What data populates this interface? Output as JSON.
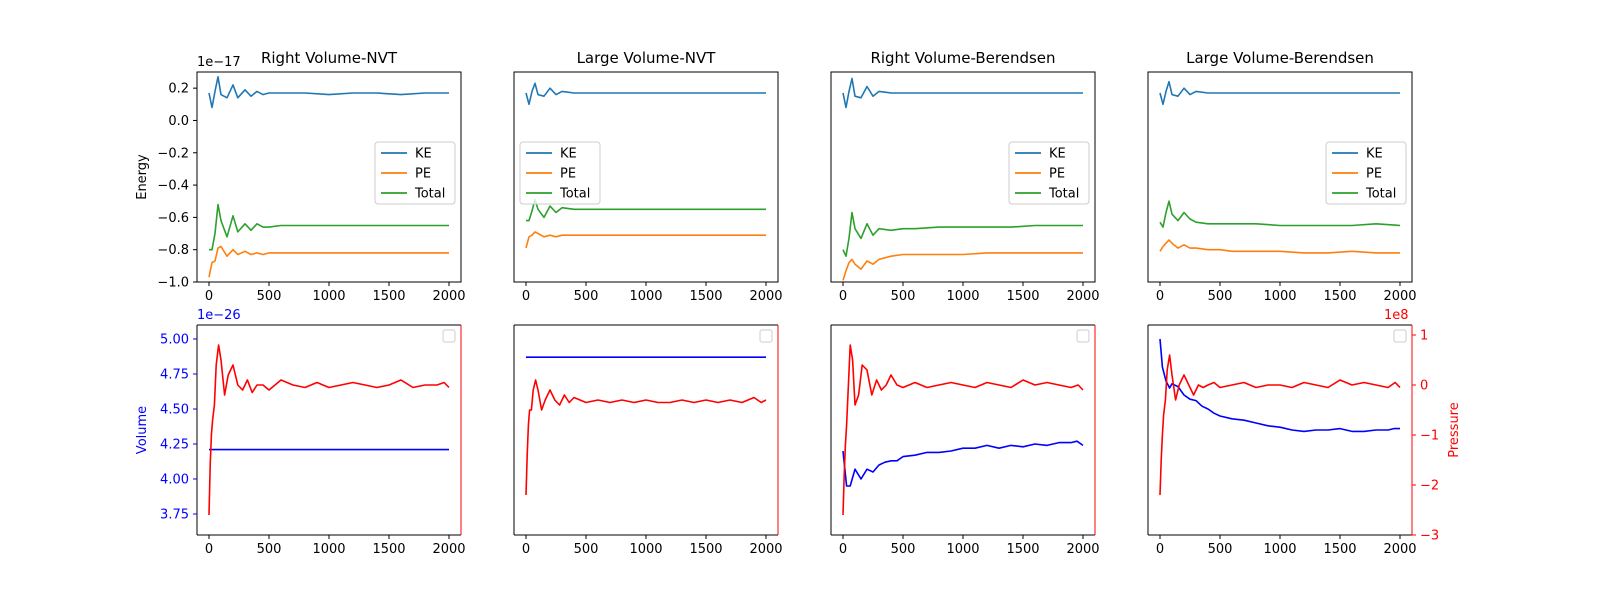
{
  "chart_data": [
    {
      "type": "line",
      "title": "Right Volume-NVT",
      "ylabel": "Energy",
      "y_offset_label": "1e−17",
      "xlim": [
        -100,
        2100
      ],
      "ylim": [
        -1.0,
        0.3
      ],
      "legend": "center-right",
      "series": [
        {
          "name": "KE",
          "color": "#1f77b4",
          "x": [
            0,
            25,
            50,
            75,
            100,
            150,
            200,
            240,
            300,
            350,
            400,
            450,
            500,
            600,
            800,
            1000,
            1200,
            1400,
            1600,
            1800,
            2000
          ],
          "y": [
            0.17,
            0.08,
            0.18,
            0.27,
            0.16,
            0.14,
            0.22,
            0.14,
            0.19,
            0.15,
            0.18,
            0.16,
            0.17,
            0.17,
            0.17,
            0.16,
            0.17,
            0.17,
            0.16,
            0.17,
            0.17
          ]
        },
        {
          "name": "PE",
          "color": "#ff7f0e",
          "x": [
            0,
            25,
            50,
            75,
            100,
            150,
            200,
            240,
            300,
            350,
            400,
            450,
            500,
            600,
            800,
            1000,
            1200,
            1400,
            1600,
            1800,
            2000
          ],
          "y": [
            -0.97,
            -0.88,
            -0.87,
            -0.79,
            -0.78,
            -0.84,
            -0.8,
            -0.83,
            -0.81,
            -0.83,
            -0.82,
            -0.83,
            -0.82,
            -0.82,
            -0.82,
            -0.82,
            -0.82,
            -0.82,
            -0.82,
            -0.82,
            -0.82
          ]
        },
        {
          "name": "Total",
          "color": "#2ca02c",
          "x": [
            0,
            25,
            50,
            75,
            100,
            150,
            200,
            240,
            300,
            350,
            400,
            450,
            500,
            600,
            800,
            1000,
            1200,
            1400,
            1600,
            1800,
            2000
          ],
          "y": [
            -0.8,
            -0.8,
            -0.7,
            -0.52,
            -0.62,
            -0.72,
            -0.59,
            -0.69,
            -0.64,
            -0.68,
            -0.64,
            -0.66,
            -0.66,
            -0.65,
            -0.65,
            -0.65,
            -0.65,
            -0.65,
            -0.65,
            -0.65,
            -0.65
          ]
        }
      ]
    },
    {
      "type": "line",
      "title": "Large Volume-NVT",
      "xlim": [
        -100,
        2100
      ],
      "ylim": [
        -1.0,
        0.3
      ],
      "legend": "center-left",
      "series": [
        {
          "name": "KE",
          "color": "#1f77b4",
          "x": [
            0,
            25,
            50,
            75,
            100,
            150,
            200,
            250,
            300,
            400,
            500,
            600,
            800,
            1000,
            1200,
            1400,
            1600,
            1800,
            2000
          ],
          "y": [
            0.17,
            0.1,
            0.18,
            0.23,
            0.16,
            0.15,
            0.2,
            0.16,
            0.18,
            0.17,
            0.17,
            0.17,
            0.17,
            0.17,
            0.17,
            0.17,
            0.17,
            0.17,
            0.17
          ]
        },
        {
          "name": "PE",
          "color": "#ff7f0e",
          "x": [
            0,
            25,
            50,
            75,
            100,
            150,
            200,
            250,
            300,
            400,
            500,
            600,
            800,
            1000,
            1200,
            1400,
            1600,
            1800,
            2000
          ],
          "y": [
            -0.79,
            -0.72,
            -0.71,
            -0.69,
            -0.7,
            -0.72,
            -0.71,
            -0.72,
            -0.71,
            -0.71,
            -0.71,
            -0.71,
            -0.71,
            -0.71,
            -0.71,
            -0.71,
            -0.71,
            -0.71,
            -0.71
          ]
        },
        {
          "name": "Total",
          "color": "#2ca02c",
          "x": [
            0,
            25,
            50,
            75,
            100,
            150,
            200,
            250,
            300,
            400,
            500,
            600,
            800,
            1000,
            1200,
            1400,
            1600,
            1800,
            2000
          ],
          "y": [
            -0.62,
            -0.62,
            -0.56,
            -0.49,
            -0.55,
            -0.6,
            -0.53,
            -0.57,
            -0.54,
            -0.55,
            -0.55,
            -0.55,
            -0.55,
            -0.55,
            -0.55,
            -0.55,
            -0.55,
            -0.55,
            -0.55
          ]
        }
      ]
    },
    {
      "type": "line",
      "title": "Right Volume-Berendsen",
      "xlim": [
        -100,
        2100
      ],
      "ylim": [
        -1.0,
        0.3
      ],
      "legend": "center-right",
      "series": [
        {
          "name": "KE",
          "color": "#1f77b4",
          "x": [
            0,
            25,
            50,
            75,
            100,
            150,
            200,
            250,
            300,
            400,
            500,
            600,
            800,
            1000,
            1200,
            1400,
            1600,
            1800,
            2000
          ],
          "y": [
            0.17,
            0.08,
            0.18,
            0.26,
            0.15,
            0.14,
            0.21,
            0.15,
            0.18,
            0.17,
            0.17,
            0.17,
            0.17,
            0.17,
            0.17,
            0.17,
            0.17,
            0.17,
            0.17
          ]
        },
        {
          "name": "PE",
          "color": "#ff7f0e",
          "x": [
            0,
            25,
            50,
            75,
            100,
            150,
            200,
            250,
            300,
            400,
            500,
            600,
            800,
            1000,
            1200,
            1400,
            1600,
            1800,
            2000
          ],
          "y": [
            -0.99,
            -0.93,
            -0.88,
            -0.86,
            -0.89,
            -0.92,
            -0.87,
            -0.89,
            -0.86,
            -0.84,
            -0.83,
            -0.83,
            -0.83,
            -0.83,
            -0.82,
            -0.82,
            -0.82,
            -0.82,
            -0.82
          ]
        },
        {
          "name": "Total",
          "color": "#2ca02c",
          "x": [
            0,
            25,
            50,
            75,
            100,
            150,
            200,
            250,
            300,
            400,
            500,
            600,
            800,
            1000,
            1200,
            1400,
            1600,
            1800,
            2000
          ],
          "y": [
            -0.8,
            -0.84,
            -0.73,
            -0.57,
            -0.67,
            -0.73,
            -0.64,
            -0.71,
            -0.67,
            -0.68,
            -0.67,
            -0.67,
            -0.66,
            -0.66,
            -0.66,
            -0.66,
            -0.65,
            -0.65,
            -0.65
          ]
        }
      ]
    },
    {
      "type": "line",
      "title": "Large Volume-Berendsen",
      "xlim": [
        -100,
        2100
      ],
      "ylim": [
        -1.0,
        0.3
      ],
      "legend": "center-right",
      "series": [
        {
          "name": "KE",
          "color": "#1f77b4",
          "x": [
            0,
            25,
            50,
            75,
            100,
            150,
            200,
            250,
            300,
            400,
            500,
            600,
            800,
            1000,
            1200,
            1400,
            1600,
            1800,
            2000
          ],
          "y": [
            0.17,
            0.1,
            0.18,
            0.24,
            0.16,
            0.15,
            0.2,
            0.16,
            0.18,
            0.17,
            0.17,
            0.17,
            0.17,
            0.17,
            0.17,
            0.17,
            0.17,
            0.17,
            0.17
          ]
        },
        {
          "name": "PE",
          "color": "#ff7f0e",
          "x": [
            0,
            25,
            50,
            75,
            100,
            150,
            200,
            250,
            300,
            400,
            500,
            600,
            800,
            1000,
            1200,
            1400,
            1600,
            1800,
            2000
          ],
          "y": [
            -0.81,
            -0.78,
            -0.76,
            -0.74,
            -0.76,
            -0.79,
            -0.77,
            -0.79,
            -0.79,
            -0.8,
            -0.8,
            -0.81,
            -0.81,
            -0.81,
            -0.82,
            -0.82,
            -0.81,
            -0.82,
            -0.82
          ]
        },
        {
          "name": "Total",
          "color": "#2ca02c",
          "x": [
            0,
            25,
            50,
            75,
            100,
            150,
            200,
            250,
            300,
            400,
            500,
            600,
            800,
            1000,
            1200,
            1400,
            1600,
            1800,
            2000
          ],
          "y": [
            -0.63,
            -0.66,
            -0.57,
            -0.5,
            -0.58,
            -0.62,
            -0.57,
            -0.61,
            -0.63,
            -0.64,
            -0.64,
            -0.64,
            -0.64,
            -0.65,
            -0.65,
            -0.65,
            -0.65,
            -0.64,
            -0.65
          ]
        }
      ]
    },
    {
      "type": "line",
      "ylabel": "Volume",
      "y_offset_label": "1e−26",
      "ylim": [
        3.6,
        5.1
      ],
      "y2lim": [
        -3,
        1.2
      ],
      "xlim": [
        -100,
        2100
      ],
      "legend": "top-right",
      "volume": {
        "color": "#0000ff",
        "x": [
          0,
          2000
        ],
        "y": [
          4.21,
          4.21
        ]
      },
      "pressure": {
        "color": "#ff0000",
        "x": [
          0,
          10,
          20,
          30,
          45,
          60,
          80,
          100,
          130,
          160,
          200,
          240,
          280,
          320,
          360,
          400,
          450,
          500,
          600,
          700,
          800,
          900,
          1000,
          1100,
          1200,
          1300,
          1400,
          1500,
          1600,
          1700,
          1800,
          1900,
          1960,
          2000
        ],
        "y": [
          -2.6,
          -1.6,
          -1.0,
          -0.7,
          -0.4,
          0.4,
          0.8,
          0.5,
          -0.2,
          0.2,
          0.4,
          0.0,
          -0.1,
          0.1,
          -0.15,
          0.0,
          0.0,
          -0.1,
          0.1,
          0.0,
          -0.05,
          0.05,
          -0.05,
          0.0,
          0.05,
          0.0,
          -0.05,
          0.0,
          0.1,
          -0.05,
          0.0,
          0.0,
          0.05,
          -0.05
        ]
      }
    },
    {
      "type": "line",
      "ylim": [
        3.6,
        5.1
      ],
      "y2lim": [
        -3,
        1.2
      ],
      "xlim": [
        -100,
        2100
      ],
      "legend": "top-right",
      "volume": {
        "color": "#0000ff",
        "x": [
          0,
          2000
        ],
        "y": [
          4.87,
          4.87
        ]
      },
      "pressure": {
        "color": "#ff0000",
        "x": [
          0,
          10,
          20,
          30,
          45,
          60,
          80,
          100,
          130,
          160,
          200,
          240,
          280,
          320,
          360,
          400,
          450,
          500,
          600,
          700,
          800,
          900,
          1000,
          1100,
          1200,
          1300,
          1400,
          1500,
          1600,
          1700,
          1800,
          1900,
          1960,
          2000
        ],
        "y": [
          -2.2,
          -1.4,
          -0.8,
          -0.5,
          -0.5,
          -0.1,
          0.1,
          -0.1,
          -0.5,
          -0.3,
          -0.1,
          -0.3,
          -0.4,
          -0.2,
          -0.35,
          -0.25,
          -0.3,
          -0.35,
          -0.3,
          -0.35,
          -0.3,
          -0.35,
          -0.3,
          -0.35,
          -0.35,
          -0.3,
          -0.35,
          -0.3,
          -0.35,
          -0.3,
          -0.35,
          -0.25,
          -0.35,
          -0.3
        ]
      }
    },
    {
      "type": "line",
      "ylim": [
        3.6,
        5.1
      ],
      "y2lim": [
        -3,
        1.2
      ],
      "xlim": [
        -100,
        2100
      ],
      "legend": "top-right",
      "volume": {
        "color": "#0000ff",
        "x": [
          0,
          30,
          60,
          100,
          150,
          200,
          250,
          300,
          350,
          400,
          450,
          500,
          600,
          700,
          800,
          900,
          1000,
          1100,
          1200,
          1300,
          1400,
          1500,
          1600,
          1700,
          1800,
          1900,
          1950,
          2000
        ],
        "y": [
          4.2,
          3.95,
          3.95,
          4.07,
          4.0,
          4.07,
          4.05,
          4.1,
          4.12,
          4.13,
          4.13,
          4.16,
          4.17,
          4.19,
          4.19,
          4.2,
          4.22,
          4.22,
          4.24,
          4.22,
          4.24,
          4.23,
          4.25,
          4.24,
          4.26,
          4.26,
          4.27,
          4.24
        ]
      },
      "pressure": {
        "color": "#ff0000",
        "x": [
          0,
          10,
          20,
          30,
          45,
          60,
          80,
          100,
          130,
          160,
          200,
          240,
          280,
          320,
          360,
          400,
          450,
          500,
          600,
          700,
          800,
          900,
          1000,
          1100,
          1200,
          1300,
          1400,
          1500,
          1600,
          1700,
          1800,
          1900,
          1960,
          2000
        ],
        "y": [
          -2.6,
          -1.8,
          -1.2,
          -0.8,
          0.0,
          0.8,
          0.5,
          -0.4,
          -0.2,
          0.4,
          0.3,
          -0.2,
          0.1,
          -0.1,
          0.0,
          0.2,
          0.0,
          -0.05,
          0.05,
          -0.05,
          0.0,
          0.05,
          0.0,
          -0.05,
          0.05,
          0.0,
          -0.05,
          0.1,
          0.0,
          0.05,
          0.0,
          -0.05,
          0.0,
          -0.1
        ]
      }
    },
    {
      "type": "line",
      "ylabel2": "Pressure",
      "y2_offset_label": "1e8",
      "ylim": [
        3.6,
        5.1
      ],
      "y2lim": [
        -3,
        1.2
      ],
      "xlim": [
        -100,
        2100
      ],
      "legend": "top-right",
      "volume": {
        "color": "#0000ff",
        "x": [
          0,
          20,
          50,
          80,
          100,
          150,
          200,
          250,
          300,
          350,
          400,
          450,
          500,
          600,
          700,
          800,
          900,
          1000,
          1100,
          1200,
          1300,
          1400,
          1500,
          1600,
          1700,
          1800,
          1900,
          1950,
          2000
        ],
        "y": [
          5.0,
          4.8,
          4.7,
          4.65,
          4.68,
          4.66,
          4.6,
          4.57,
          4.56,
          4.52,
          4.5,
          4.47,
          4.45,
          4.43,
          4.42,
          4.4,
          4.38,
          4.37,
          4.35,
          4.34,
          4.35,
          4.35,
          4.36,
          4.34,
          4.34,
          4.35,
          4.35,
          4.36,
          4.36
        ]
      },
      "pressure": {
        "color": "#ff0000",
        "x": [
          0,
          10,
          20,
          30,
          45,
          60,
          80,
          100,
          130,
          160,
          200,
          240,
          280,
          320,
          360,
          400,
          450,
          500,
          600,
          700,
          800,
          900,
          1000,
          1100,
          1200,
          1300,
          1400,
          1500,
          1600,
          1700,
          1800,
          1900,
          1960,
          2000
        ],
        "y": [
          -2.2,
          -1.5,
          -1.0,
          -0.6,
          -0.3,
          0.3,
          0.6,
          0.2,
          -0.3,
          0.0,
          0.2,
          0.0,
          -0.2,
          0.0,
          -0.05,
          0.0,
          0.05,
          -0.05,
          0.0,
          0.05,
          -0.05,
          0.0,
          0.0,
          -0.05,
          0.05,
          0.0,
          -0.05,
          0.1,
          0.0,
          0.05,
          0.0,
          -0.05,
          0.05,
          -0.05
        ]
      }
    }
  ],
  "ticks": {
    "x": [
      "0",
      "500",
      "1000",
      "1500",
      "2000"
    ],
    "energy_y": [
      "0.2",
      "0.0",
      "−0.2",
      "−0.4",
      "−0.6",
      "−0.8",
      "−1.0"
    ],
    "volume_y": [
      "5.00",
      "4.75",
      "4.50",
      "4.25",
      "4.00",
      "3.75"
    ],
    "pressure_y": [
      "1",
      "0",
      "−1",
      "−2",
      "−3"
    ]
  }
}
